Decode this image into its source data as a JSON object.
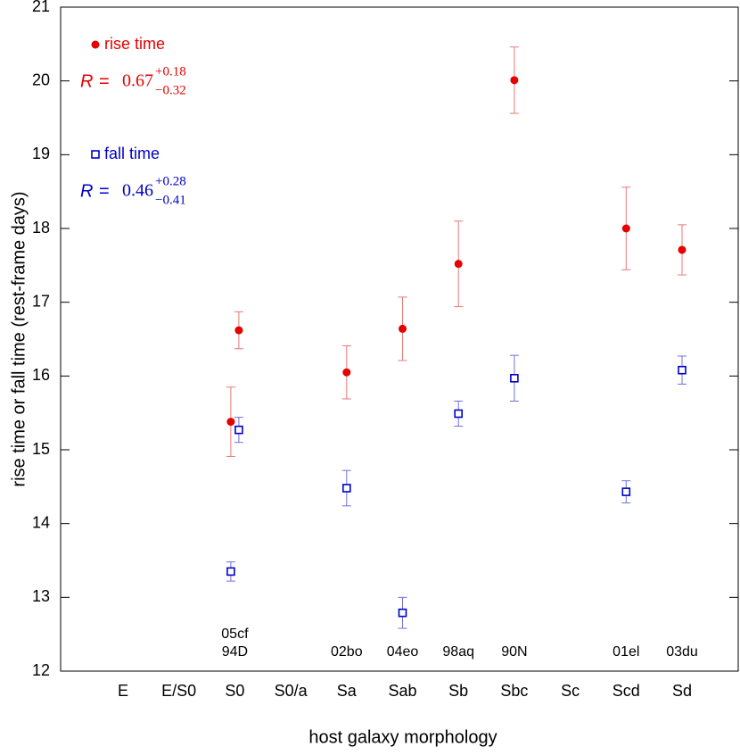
{
  "chart_data": {
    "type": "scatter",
    "y_label": "rise time or fall time (rest-frame days)",
    "x_label": "host galaxy morphology",
    "categories": [
      "E",
      "E/S0",
      "S0",
      "S0/a",
      "Sa",
      "Sab",
      "Sb",
      "Sbc",
      "Sc",
      "Scd",
      "Sd"
    ],
    "sn_labels": [
      null,
      null,
      [
        "05cf",
        "94D"
      ],
      null,
      [
        "02bo"
      ],
      [
        "04eo"
      ],
      [
        "98aq"
      ],
      [
        "90N"
      ],
      null,
      [
        "01el"
      ],
      [
        "03du"
      ]
    ],
    "ylim": [
      12,
      21
    ],
    "yticks": [
      12,
      13,
      14,
      15,
      16,
      17,
      18,
      19,
      20,
      21
    ],
    "series": [
      {
        "name": "rise time",
        "marker": "circle",
        "color": "#e60000",
        "error_color": "#e87878",
        "r_symbol": "R",
        "r_eq": "=",
        "r_value": "0.67",
        "r_plus": "+0.18",
        "r_minus": "−0.32",
        "categories": [
          "S0",
          "S0",
          "Sa",
          "Sab",
          "Sb",
          "Sbc",
          "Scd",
          "Sd"
        ],
        "values": [
          15.38,
          16.62,
          16.05,
          16.64,
          17.52,
          20.01,
          18.0,
          17.71
        ],
        "errors": [
          0.47,
          0.25,
          0.36,
          0.43,
          0.58,
          0.45,
          0.56,
          0.34
        ]
      },
      {
        "name": "fall time",
        "marker": "square",
        "color": "#0000cc",
        "error_color": "#7070dd",
        "r_symbol": "R",
        "r_eq": "=",
        "r_value": "0.46",
        "r_plus": "+0.28",
        "r_minus": "−0.41",
        "categories": [
          "S0",
          "S0",
          "Sa",
          "Sab",
          "Sb",
          "Sbc",
          "Scd",
          "Sd"
        ],
        "values": [
          13.35,
          15.27,
          14.48,
          12.79,
          15.49,
          15.97,
          14.43,
          16.08
        ],
        "errors": [
          0.13,
          0.17,
          0.24,
          0.21,
          0.17,
          0.31,
          0.15,
          0.19
        ]
      }
    ]
  }
}
